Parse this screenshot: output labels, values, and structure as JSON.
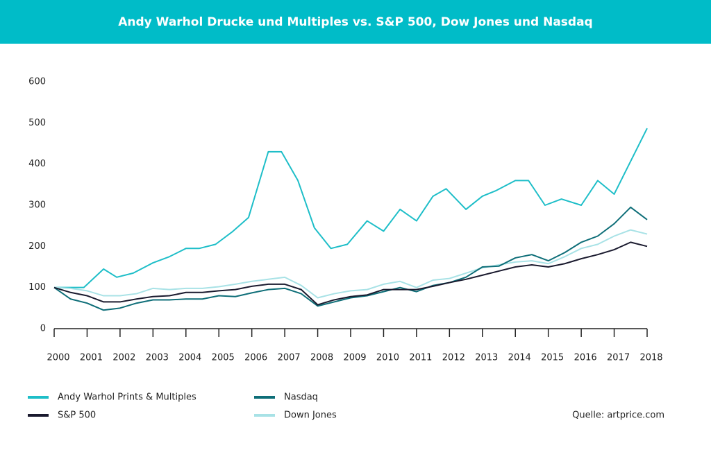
{
  "chart_data": {
    "type": "line",
    "title": "Andy Warhol Drucke und Multiples vs. S&P 500, Dow Jones und Nasdaq",
    "source": "Quelle: artprice.com",
    "xlim": [
      2000,
      2018
    ],
    "xticks": [
      2000,
      2001,
      2002,
      2003,
      2004,
      2005,
      2006,
      2007,
      2008,
      2009,
      2010,
      2011,
      2012,
      2013,
      2014,
      2015,
      2016,
      2017,
      2018
    ],
    "ylim": [
      0,
      600
    ],
    "yticks": [
      0,
      100,
      200,
      300,
      400,
      500,
      600
    ],
    "grid": false,
    "series": [
      {
        "name": "Andy Warhol Prints & Multiples",
        "color": "#1ebec8",
        "x": [
          2000,
          2000.9,
          2001.5,
          2001.9,
          2002.4,
          2003,
          2003.5,
          2004,
          2004.4,
          2004.9,
          2005.4,
          2005.9,
          2006.5,
          2006.9,
          2007.4,
          2007.9,
          2008.4,
          2008.9,
          2009.5,
          2010,
          2010.5,
          2011,
          2011.5,
          2011.9,
          2012.5,
          2013,
          2013.4,
          2014,
          2014.4,
          2014.9,
          2015.4,
          2016,
          2016.5,
          2017,
          2018
        ],
        "values": [
          100,
          100,
          145,
          125,
          135,
          160,
          175,
          195,
          195,
          205,
          235,
          270,
          430,
          430,
          360,
          245,
          195,
          205,
          262,
          237,
          290,
          262,
          322,
          340,
          290,
          322,
          335,
          360,
          360,
          300,
          315,
          300,
          360,
          327,
          487
        ]
      },
      {
        "name": "Nasdaq",
        "color": "#0e6e78",
        "x": [
          2000,
          2000.5,
          2001,
          2001.5,
          2002,
          2002.5,
          2003,
          2003.5,
          2004,
          2004.5,
          2005,
          2005.5,
          2006,
          2006.5,
          2007,
          2007.5,
          2008,
          2008.5,
          2009,
          2009.5,
          2010,
          2010.5,
          2011,
          2011.5,
          2012,
          2012.5,
          2013,
          2013.5,
          2014,
          2014.5,
          2015,
          2015.5,
          2016,
          2016.5,
          2017,
          2017.5,
          2018
        ],
        "values": [
          100,
          72,
          62,
          45,
          50,
          62,
          70,
          70,
          72,
          72,
          80,
          78,
          87,
          95,
          98,
          85,
          55,
          65,
          75,
          80,
          90,
          100,
          90,
          105,
          112,
          125,
          150,
          152,
          172,
          180,
          165,
          185,
          210,
          225,
          255,
          295,
          265
        ]
      },
      {
        "name": "S&P 500",
        "color": "#1a1a2e",
        "x": [
          2000,
          2000.5,
          2001,
          2001.5,
          2002,
          2002.5,
          2003,
          2003.5,
          2004,
          2004.5,
          2005,
          2005.5,
          2006,
          2006.5,
          2007,
          2007.5,
          2008,
          2008.5,
          2009,
          2009.5,
          2010,
          2010.5,
          2011,
          2011.5,
          2012,
          2012.5,
          2013,
          2013.5,
          2014,
          2014.5,
          2015,
          2015.5,
          2016,
          2016.5,
          2017,
          2017.5,
          2018
        ],
        "values": [
          100,
          88,
          80,
          65,
          65,
          72,
          78,
          80,
          88,
          88,
          92,
          95,
          103,
          108,
          108,
          95,
          58,
          70,
          78,
          82,
          95,
          95,
          95,
          103,
          112,
          120,
          130,
          140,
          150,
          155,
          150,
          158,
          170,
          180,
          192,
          210,
          200
        ]
      },
      {
        "name": "Down Jones",
        "color": "#a8e2e6",
        "x": [
          2000,
          2000.5,
          2001,
          2001.5,
          2002,
          2002.5,
          2003,
          2003.5,
          2004,
          2004.5,
          2005,
          2005.5,
          2006,
          2006.5,
          2007,
          2007.5,
          2008,
          2008.5,
          2009,
          2009.5,
          2010,
          2010.5,
          2011,
          2011.5,
          2012,
          2012.5,
          2013,
          2013.5,
          2014,
          2014.5,
          2015,
          2015.5,
          2016,
          2016.5,
          2017,
          2017.5,
          2018
        ],
        "values": [
          100,
          98,
          92,
          80,
          80,
          85,
          98,
          95,
          98,
          98,
          102,
          108,
          115,
          120,
          125,
          105,
          75,
          85,
          92,
          95,
          108,
          115,
          100,
          118,
          122,
          135,
          148,
          155,
          162,
          165,
          158,
          175,
          195,
          205,
          225,
          240,
          230
        ]
      }
    ]
  }
}
